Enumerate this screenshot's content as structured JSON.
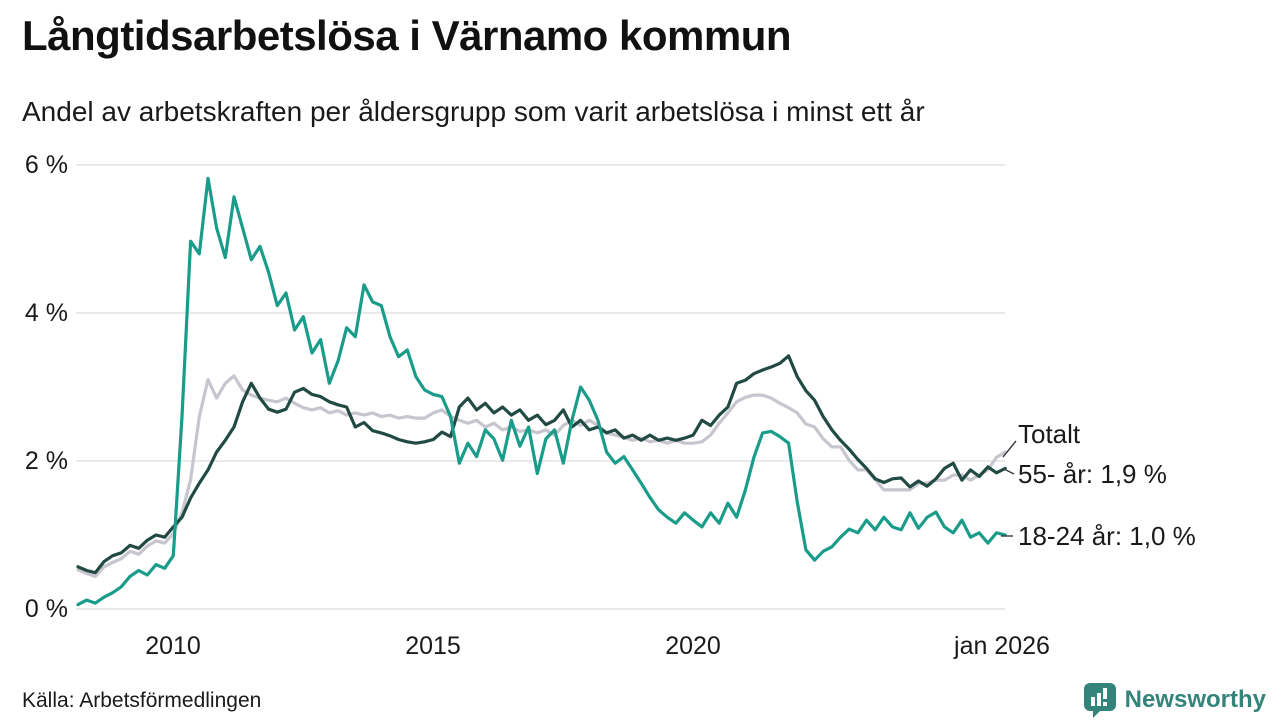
{
  "header": {
    "title": "Långtidsarbetslösa i Värnamo kommun",
    "subtitle": "Andel av arbetskraften per åldersgrupp som varit arbetslösa i minst ett år"
  },
  "chart_data": {
    "type": "line",
    "title": "Långtidsarbetslösa i Värnamo kommun",
    "subtitle": "Andel av arbetskraften per åldersgrupp som varit arbetslösa i minst ett år",
    "unit": "%",
    "grid": true,
    "legend_position": "line-end-labels-right",
    "x_axis": {
      "start_year": 2008.1667,
      "step_years": 0.1667,
      "end_year": 2026.0,
      "ticks": [
        {
          "label": "2010",
          "year": 2010
        },
        {
          "label": "2015",
          "year": 2015
        },
        {
          "label": "2020",
          "year": 2020
        },
        {
          "label": "jan 2026",
          "year": 2026
        }
      ]
    },
    "y_axis": {
      "min": 0,
      "max": 6.3,
      "ticks": [
        {
          "label": "0 %",
          "value": 0
        },
        {
          "label": "2 %",
          "value": 2
        },
        {
          "label": "4 %",
          "value": 4
        },
        {
          "label": "6 %",
          "value": 6
        }
      ]
    },
    "series": [
      {
        "name": "Totalt",
        "end_label": "Totalt",
        "color": "#c7c5cd",
        "values": [
          0.53,
          0.48,
          0.44,
          0.57,
          0.63,
          0.68,
          0.78,
          0.74,
          0.85,
          0.92,
          0.89,
          1.02,
          1.3,
          1.75,
          2.6,
          3.1,
          2.85,
          3.05,
          3.15,
          2.96,
          2.89,
          2.85,
          2.82,
          2.8,
          2.85,
          2.78,
          2.72,
          2.69,
          2.72,
          2.65,
          2.68,
          2.62,
          2.65,
          2.62,
          2.65,
          2.6,
          2.62,
          2.58,
          2.6,
          2.58,
          2.58,
          2.65,
          2.69,
          2.6,
          2.55,
          2.51,
          2.55,
          2.46,
          2.51,
          2.42,
          2.46,
          2.4,
          2.42,
          2.38,
          2.42,
          2.35,
          2.48,
          2.55,
          2.48,
          2.55,
          2.48,
          2.38,
          2.35,
          2.32,
          2.28,
          2.31,
          2.26,
          2.28,
          2.24,
          2.28,
          2.24,
          2.24,
          2.26,
          2.35,
          2.51,
          2.65,
          2.8,
          2.86,
          2.89,
          2.89,
          2.85,
          2.78,
          2.72,
          2.65,
          2.5,
          2.46,
          2.3,
          2.19,
          2.19,
          2.01,
          1.88,
          1.88,
          1.75,
          1.61,
          1.61,
          1.61,
          1.61,
          1.7,
          1.7,
          1.74,
          1.74,
          1.81,
          1.81,
          1.74,
          1.81,
          1.88,
          2.05,
          2.12
        ]
      },
      {
        "name": "55- år",
        "end_label": "55- år: 1,9 %",
        "latest_value": "1,9 %",
        "color": "#214a43",
        "values": [
          0.57,
          0.52,
          0.49,
          0.64,
          0.72,
          0.76,
          0.86,
          0.82,
          0.93,
          1.0,
          0.97,
          1.11,
          1.24,
          1.5,
          1.7,
          1.88,
          2.12,
          2.28,
          2.46,
          2.8,
          3.05,
          2.85,
          2.7,
          2.66,
          2.7,
          2.93,
          2.98,
          2.9,
          2.87,
          2.8,
          2.76,
          2.73,
          2.46,
          2.52,
          2.41,
          2.38,
          2.34,
          2.29,
          2.26,
          2.24,
          2.26,
          2.29,
          2.39,
          2.33,
          2.73,
          2.85,
          2.69,
          2.78,
          2.65,
          2.73,
          2.62,
          2.69,
          2.55,
          2.62,
          2.49,
          2.55,
          2.69,
          2.46,
          2.55,
          2.42,
          2.46,
          2.38,
          2.42,
          2.31,
          2.35,
          2.28,
          2.35,
          2.28,
          2.31,
          2.28,
          2.31,
          2.35,
          2.55,
          2.48,
          2.62,
          2.73,
          3.05,
          3.09,
          3.18,
          3.23,
          3.27,
          3.32,
          3.42,
          3.14,
          2.95,
          2.82,
          2.6,
          2.42,
          2.28,
          2.16,
          2.02,
          1.9,
          1.76,
          1.71,
          1.76,
          1.77,
          1.65,
          1.73,
          1.66,
          1.76,
          1.9,
          1.97,
          1.74,
          1.88,
          1.79,
          1.92,
          1.84,
          1.9
        ]
      },
      {
        "name": "18-24 år",
        "end_label": "18-24 år: 1,0 %",
        "latest_value": "1,0 %",
        "color": "#1a9c8b",
        "values": [
          0.06,
          0.12,
          0.08,
          0.16,
          0.22,
          0.3,
          0.44,
          0.52,
          0.46,
          0.6,
          0.55,
          0.72,
          2.6,
          4.97,
          4.8,
          5.82,
          5.15,
          4.75,
          5.57,
          5.15,
          4.72,
          4.9,
          4.55,
          4.1,
          4.27,
          3.77,
          3.95,
          3.46,
          3.64,
          3.05,
          3.35,
          3.8,
          3.68,
          4.38,
          4.15,
          4.1,
          3.68,
          3.41,
          3.5,
          3.14,
          2.96,
          2.9,
          2.87,
          2.6,
          1.97,
          2.24,
          2.06,
          2.42,
          2.3,
          2.01,
          2.55,
          2.2,
          2.46,
          1.83,
          2.3,
          2.42,
          1.97,
          2.55,
          3.0,
          2.82,
          2.55,
          2.12,
          1.97,
          2.06,
          1.88,
          1.7,
          1.51,
          1.34,
          1.24,
          1.16,
          1.3,
          1.2,
          1.11,
          1.3,
          1.16,
          1.43,
          1.24,
          1.6,
          2.05,
          2.38,
          2.4,
          2.33,
          2.24,
          1.45,
          0.8,
          0.66,
          0.78,
          0.84,
          0.97,
          1.08,
          1.03,
          1.2,
          1.07,
          1.24,
          1.11,
          1.07,
          1.3,
          1.09,
          1.24,
          1.31,
          1.11,
          1.03,
          1.2,
          0.97,
          1.03,
          0.89,
          1.03,
          1.0
        ]
      }
    ]
  },
  "footer": {
    "source": "Källa: Arbetsförmedlingen",
    "brand": "Newsworthy",
    "brand_color": "#35847b",
    "brand_icon": "speech-bubble-bar-chart-icon"
  },
  "style": {
    "grid_color": "#e4e3e3",
    "connector_color": "#3a3a3a",
    "text_color": "#1a1a1a"
  }
}
